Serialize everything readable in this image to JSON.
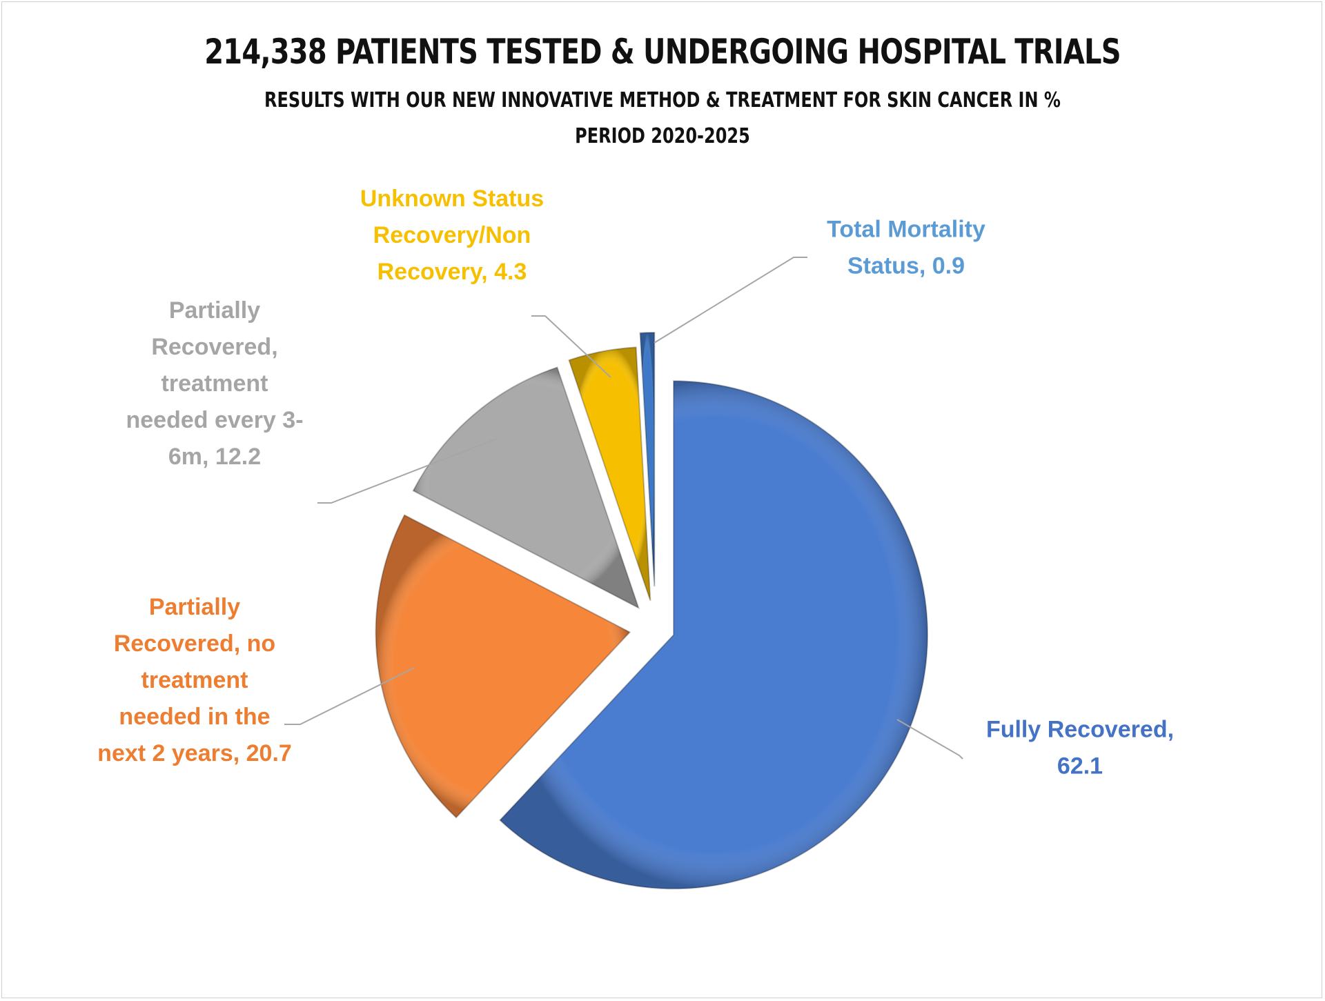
{
  "chart_data": {
    "type": "pie",
    "title": "214,338 PATIENTS TESTED & UNDERGOING HOSPITAL TRIALS",
    "subtitle": "RESULTS WITH OUR NEW INNOVATIVE METHOD & TREATMENT FOR SKIN CANCER IN %",
    "subtitle2": "PERIOD  2020-2025",
    "legend": "none",
    "slices": [
      {
        "category": "Fully Recovered",
        "value": 62.1,
        "color": "#4A7CCF",
        "label_lines": [
          "Fully Recovered,",
          "62.1"
        ]
      },
      {
        "category": "Partially Recovered, no treatment needed in the next 2 years",
        "value": 20.7,
        "color": "#F5863A",
        "label_lines": [
          "Partially",
          "Recovered, no",
          "treatment",
          "needed in the",
          "next 2 years, 20.7"
        ]
      },
      {
        "category": "Partially Recovered, treatment needed every 3-6m",
        "value": 12.2,
        "color": "#AAAAAA",
        "label_lines": [
          "Partially",
          "Recovered,",
          "treatment",
          "needed every 3-",
          "6m, 12.2"
        ]
      },
      {
        "category": "Unknown Status Recovery/Non Recovery",
        "value": 4.3,
        "color": "#F6C000",
        "label_lines": [
          "Unknown Status",
          "Recovery/Non",
          "Recovery, 4.3"
        ]
      },
      {
        "category": "Total Mortality Status",
        "value": 0.9,
        "color": "#3E78C6",
        "label_lines": [
          "Total Mortality",
          "Status, 0.9"
        ]
      }
    ],
    "label_colors": [
      "#4472C4",
      "#ED7D31",
      "#A5A5A5",
      "#F6C000",
      "#5B9BD5"
    ]
  }
}
